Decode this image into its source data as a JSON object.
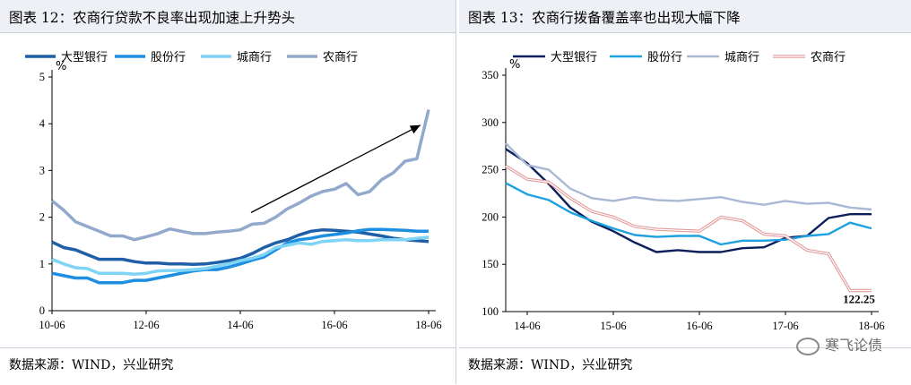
{
  "panels": {
    "left": {
      "title": "图表 12：农商行贷款不良率出现加速上升势头",
      "source": "数据来源：WIND，兴业研究"
    },
    "right": {
      "title": "图表 13：农商行拨备覆盖率也出现大幅下降",
      "source": "数据来源：WIND，兴业研究"
    }
  },
  "watermark": {
    "text": "寒飞论债",
    "icon": "wechat-icon"
  },
  "chart_data": [
    {
      "type": "line",
      "unit_label": "%",
      "ylim": [
        0,
        5
      ],
      "yticks": [
        "0",
        "1",
        "2",
        "3",
        "4",
        "5"
      ],
      "x": [
        "10-06",
        "10-09",
        "10-12",
        "11-03",
        "11-06",
        "11-09",
        "11-12",
        "12-03",
        "12-06",
        "12-09",
        "12-12",
        "13-03",
        "13-06",
        "13-09",
        "13-12",
        "14-03",
        "14-06",
        "14-09",
        "14-12",
        "15-03",
        "15-06",
        "15-09",
        "15-12",
        "16-03",
        "16-06",
        "16-09",
        "16-12",
        "17-03",
        "17-06",
        "17-09",
        "17-12",
        "18-03",
        "18-06"
      ],
      "xticks": [
        "10-06",
        "12-06",
        "14-06",
        "16-06",
        "18-06"
      ],
      "series": [
        {
          "name": "大型银行",
          "color": "#1f5fa8",
          "values": [
            1.47,
            1.35,
            1.3,
            1.2,
            1.1,
            1.1,
            1.1,
            1.05,
            1.02,
            1.02,
            1.0,
            1.0,
            0.99,
            1.0,
            1.03,
            1.07,
            1.12,
            1.22,
            1.35,
            1.45,
            1.52,
            1.62,
            1.7,
            1.73,
            1.72,
            1.7,
            1.68,
            1.64,
            1.6,
            1.55,
            1.52,
            1.5,
            1.48
          ]
        },
        {
          "name": "股份行",
          "color": "#1e8fe0",
          "values": [
            0.8,
            0.75,
            0.7,
            0.7,
            0.6,
            0.6,
            0.6,
            0.65,
            0.65,
            0.7,
            0.75,
            0.8,
            0.85,
            0.88,
            0.88,
            0.93,
            1.0,
            1.08,
            1.15,
            1.3,
            1.45,
            1.52,
            1.55,
            1.6,
            1.63,
            1.66,
            1.71,
            1.74,
            1.74,
            1.73,
            1.72,
            1.7,
            1.7
          ]
        },
        {
          "name": "城商行",
          "color": "#7fd3f5",
          "values": [
            1.1,
            1.0,
            0.92,
            0.9,
            0.8,
            0.8,
            0.8,
            0.78,
            0.8,
            0.85,
            0.86,
            0.86,
            0.88,
            0.9,
            0.95,
            1.0,
            1.07,
            1.12,
            1.2,
            1.35,
            1.4,
            1.45,
            1.42,
            1.48,
            1.5,
            1.52,
            1.5,
            1.5,
            1.52,
            1.52,
            1.52,
            1.55,
            1.57
          ]
        },
        {
          "name": "农商行",
          "color": "#93a9cc",
          "values": [
            2.35,
            2.15,
            1.9,
            1.8,
            1.7,
            1.6,
            1.6,
            1.52,
            1.58,
            1.65,
            1.75,
            1.7,
            1.65,
            1.65,
            1.68,
            1.7,
            1.73,
            1.85,
            1.87,
            2.0,
            2.18,
            2.3,
            2.45,
            2.55,
            2.6,
            2.72,
            2.48,
            2.55,
            2.8,
            2.95,
            3.2,
            3.25,
            4.3
          ]
        }
      ],
      "annotation": {
        "type": "arrow",
        "from": {
          "x": "14-06",
          "y": 2.1
        },
        "to": {
          "x": "18-03",
          "y": 3.97
        }
      }
    },
    {
      "type": "line",
      "unit_label": "%",
      "ylim": [
        100,
        350
      ],
      "yticks": [
        "100",
        "150",
        "200",
        "250",
        "300",
        "350"
      ],
      "x": [
        "14-03",
        "14-06",
        "14-09",
        "14-12",
        "15-03",
        "15-06",
        "15-09",
        "15-12",
        "16-03",
        "16-06",
        "16-09",
        "16-12",
        "17-03",
        "17-06",
        "17-09",
        "17-12",
        "18-03",
        "18-06"
      ],
      "xticks": [
        "14-06",
        "15-06",
        "16-06",
        "17-06",
        "18-06"
      ],
      "series": [
        {
          "name": "大型银行",
          "color": "#0b1f5c",
          "values": [
            272,
            257,
            235,
            210,
            195,
            185,
            173,
            163,
            165,
            163,
            163,
            167,
            168,
            178,
            180,
            199,
            203,
            203
          ]
        },
        {
          "name": "股份行",
          "color": "#1ea1e0",
          "values": [
            236,
            224,
            218,
            205,
            196,
            188,
            181,
            179,
            180,
            180,
            171,
            175,
            175,
            176,
            180,
            182,
            194,
            188
          ]
        },
        {
          "name": "城商行",
          "color": "#aab8d6",
          "values": [
            278,
            255,
            250,
            230,
            220,
            217,
            221,
            218,
            217,
            219,
            221,
            216,
            213,
            217,
            214,
            215,
            210,
            208
          ]
        },
        {
          "name": "农商行",
          "color": "#e59a9a",
          "values": [
            254,
            240,
            237,
            220,
            206,
            200,
            190,
            187,
            186,
            185,
            200,
            196,
            182,
            180,
            165,
            161,
            122.25,
            122.25
          ]
        }
      ],
      "data_label": {
        "text": "122.25",
        "x": "18-03",
        "y": 122.25
      }
    }
  ]
}
